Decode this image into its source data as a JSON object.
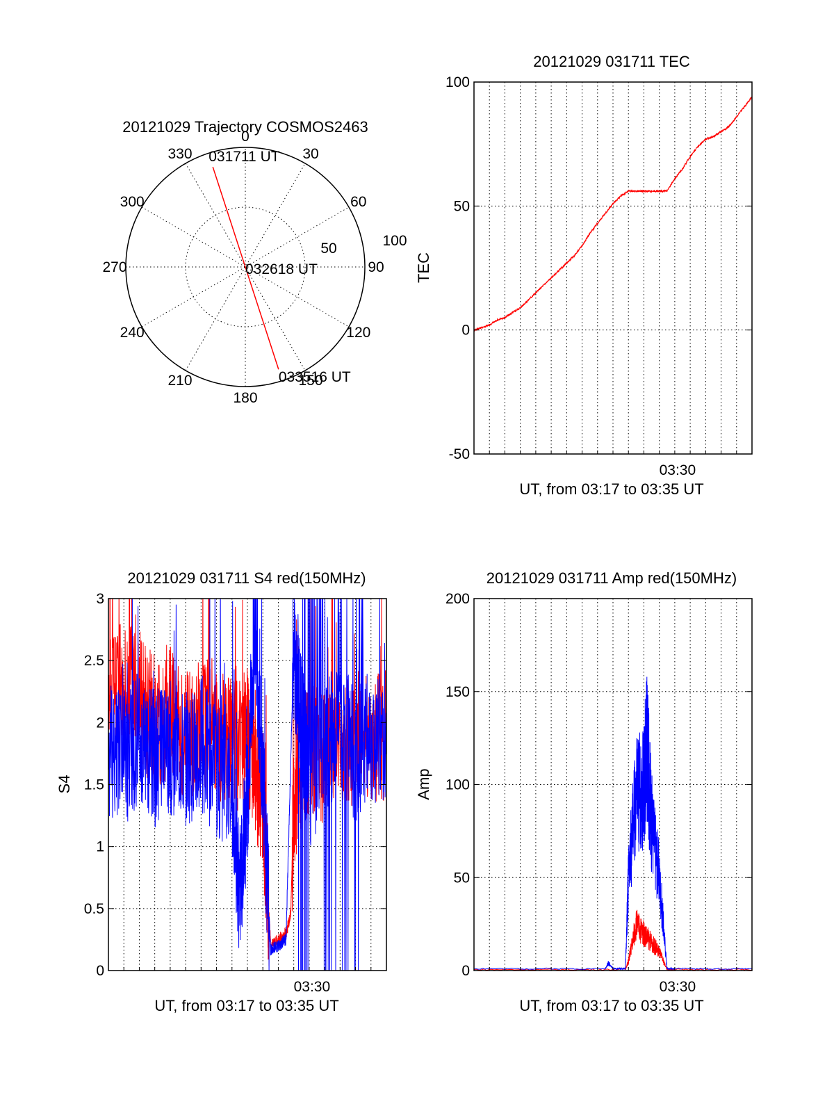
{
  "colors": {
    "red": "#ff0000",
    "blue": "#0000ff"
  },
  "chart_data": [
    {
      "type": "polar",
      "title": "20121029 Trajectory COSMOS2463",
      "azimuth_labels": [
        "0",
        "30",
        "60",
        "90",
        "120",
        "150",
        "180",
        "210",
        "240",
        "270",
        "300",
        "330"
      ],
      "radial_labels": [
        "50",
        "100"
      ],
      "radial_range": [
        0,
        100
      ],
      "trajectory": [
        {
          "azimuth": 342,
          "radius": 88,
          "label": "031711 UT"
        },
        {
          "azimuth": 0,
          "radius": 0,
          "label": "032618 UT"
        },
        {
          "azimuth": 162,
          "radius": 90,
          "label": "033516 UT"
        }
      ],
      "series_color": "#ff0000"
    },
    {
      "type": "line",
      "title": "20121029 031711 TEC",
      "xlabel": "UT, from 03:17 to 03:35 UT",
      "ylabel": "TEC",
      "xlim": [
        0,
        18
      ],
      "ylim": [
        -50,
        100
      ],
      "yticks": [
        "-50",
        "0",
        "50",
        "100"
      ],
      "xticks": [
        {
          "value": 13,
          "label": "03:30"
        }
      ],
      "series": [
        {
          "color": "#ff0000",
          "x": [
            0,
            0.5,
            1,
            1.5,
            2,
            2.5,
            3,
            3.5,
            4,
            4.5,
            5,
            5.5,
            6,
            6.5,
            7,
            7.5,
            8,
            8.5,
            9,
            9.5,
            10,
            10.5,
            11,
            11.5,
            12,
            12.5,
            13,
            13.5,
            14,
            14.5,
            15,
            15.5,
            16,
            16.5,
            17,
            17.5,
            18
          ],
          "y": [
            0,
            1,
            2,
            4,
            5,
            7,
            9,
            12,
            15,
            18,
            21,
            24,
            27,
            30,
            34,
            39,
            43,
            47,
            51,
            54,
            56,
            56,
            56,
            56,
            56,
            56,
            61,
            65,
            70,
            74,
            77,
            78,
            80,
            82,
            86,
            90,
            94
          ]
        }
      ]
    },
    {
      "type": "line",
      "title": "20121029 031711 S4 red(150MHz)",
      "xlabel": "UT, from 03:17 to 03:35 UT",
      "ylabel": "S4",
      "xlim": [
        0,
        18
      ],
      "ylim": [
        0,
        3
      ],
      "yticks": [
        "0",
        "0.5",
        "1",
        "1.5",
        "2",
        "2.5",
        "3"
      ],
      "xticks": [
        {
          "value": 13,
          "label": "03:30"
        }
      ],
      "series": [
        {
          "color": "#ff0000",
          "x": [
            0,
            1,
            2,
            3,
            4,
            5,
            6,
            7,
            8,
            9,
            9.5,
            10,
            10.2,
            10.5,
            11,
            11.5,
            11.8,
            12,
            12.5,
            13,
            14,
            15,
            16,
            17,
            18
          ],
          "y": [
            2.3,
            2.4,
            2.2,
            2.0,
            2.1,
            1.9,
            2.0,
            1.9,
            1.8,
            1.9,
            1.6,
            1.4,
            0.9,
            0.2,
            0.25,
            0.3,
            0.45,
            1.3,
            1.7,
            1.8,
            1.7,
            1.8,
            1.9,
            1.8,
            1.9
          ]
        },
        {
          "color": "#0000ff",
          "x": [
            0,
            1,
            2,
            3,
            4,
            5,
            6,
            7,
            8,
            8.5,
            9,
            9.5,
            10,
            10.5,
            11,
            11.5,
            12,
            12.5,
            13,
            14,
            15,
            16,
            17,
            18
          ],
          "y": [
            1.8,
            1.7,
            1.9,
            1.7,
            1.8,
            1.7,
            1.8,
            1.6,
            1.5,
            0.6,
            1.4,
            2.8,
            1.5,
            0.17,
            0.2,
            0.25,
            2.6,
            2.0,
            1.5,
            1.8,
            2.0,
            1.7,
            1.9,
            1.8
          ]
        }
      ]
    },
    {
      "type": "line",
      "title": "20121029 031711 Amp red(150MHz)",
      "xlabel": "UT, from 03:17 to 03:35 UT",
      "ylabel": "Amp",
      "xlim": [
        0,
        18
      ],
      "ylim": [
        0,
        200
      ],
      "yticks": [
        "0",
        "50",
        "100",
        "150",
        "200"
      ],
      "xticks": [
        {
          "value": 13,
          "label": "03:30"
        }
      ],
      "series": [
        {
          "color": "#ff0000",
          "x": [
            0,
            9.8,
            10,
            10.5,
            11,
            11.5,
            12,
            12.5,
            13,
            18
          ],
          "y": [
            0.5,
            0.5,
            5,
            25,
            20,
            15,
            10,
            0.5,
            0.5,
            0.5
          ]
        },
        {
          "color": "#0000ff",
          "x": [
            0,
            8.5,
            8.7,
            9,
            9.8,
            10,
            10.5,
            11,
            11.2,
            11.5,
            12,
            12.5,
            13,
            18
          ],
          "y": [
            1,
            1,
            4,
            1,
            1,
            50,
            95,
            100,
            120,
            80,
            50,
            1,
            1,
            1
          ]
        }
      ]
    }
  ]
}
